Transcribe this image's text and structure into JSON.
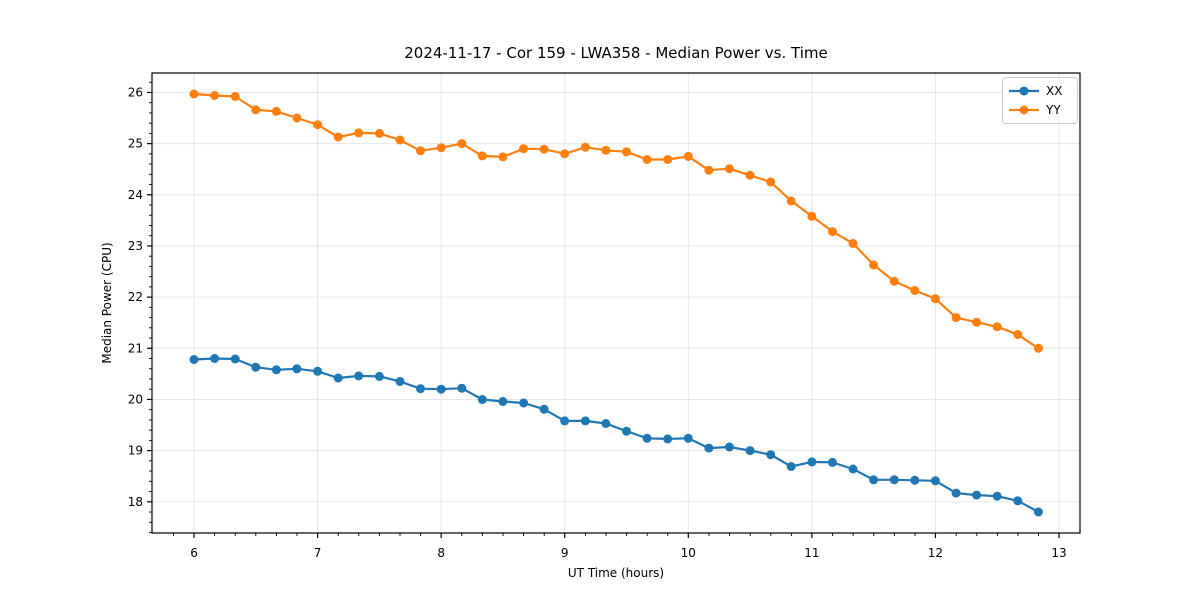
{
  "chart_data": {
    "type": "line",
    "title": "2024-11-17 - Cor 159 - LWA358 - Median Power vs. Time",
    "xlabel": "UT Time (hours)",
    "ylabel": "Median Power (CPU)",
    "xlim": [
      5.66,
      13.17
    ],
    "ylim": [
      17.39,
      26.38
    ],
    "x_ticks": [
      6,
      7,
      8,
      9,
      10,
      11,
      12,
      13
    ],
    "y_ticks": [
      18,
      19,
      20,
      21,
      22,
      23,
      24,
      25,
      26
    ],
    "x_minor_step": 0.1667,
    "y_minor_step": 0.2,
    "grid": true,
    "grid_color": "#e6e6e6",
    "spine_color": "#000000",
    "tick_label_size": 12,
    "legend_position": "upper right",
    "x": [
      6.0,
      6.167,
      6.333,
      6.5,
      6.667,
      6.833,
      7.0,
      7.167,
      7.333,
      7.5,
      7.667,
      7.833,
      8.0,
      8.167,
      8.333,
      8.5,
      8.667,
      8.833,
      9.0,
      9.167,
      9.333,
      9.5,
      9.667,
      9.833,
      10.0,
      10.167,
      10.333,
      10.5,
      10.667,
      10.833,
      11.0,
      11.167,
      11.333,
      11.5,
      11.667,
      11.833,
      12.0,
      12.167,
      12.333,
      12.5,
      12.667,
      12.833
    ],
    "series": [
      {
        "name": "XX",
        "color": "#1f77b4",
        "marker": "circle",
        "values": [
          20.78,
          20.8,
          20.79,
          20.63,
          20.58,
          20.6,
          20.55,
          20.42,
          20.46,
          20.45,
          20.35,
          20.21,
          20.2,
          20.22,
          20.0,
          19.96,
          19.93,
          19.81,
          19.58,
          19.58,
          19.53,
          19.38,
          19.24,
          19.23,
          19.24,
          19.05,
          19.07,
          19.0,
          18.92,
          18.69,
          18.78,
          18.77,
          18.64,
          18.43,
          18.43,
          18.42,
          18.41,
          18.17,
          18.13,
          18.11,
          18.02,
          17.8
        ]
      },
      {
        "name": "YY",
        "color": "#ff7f0e",
        "marker": "circle",
        "values": [
          25.97,
          25.94,
          25.92,
          25.66,
          25.63,
          25.5,
          25.37,
          25.13,
          25.21,
          25.2,
          25.07,
          24.86,
          24.92,
          25.0,
          24.76,
          24.74,
          24.9,
          24.89,
          24.8,
          24.93,
          24.87,
          24.84,
          24.69,
          24.69,
          24.75,
          24.48,
          24.51,
          24.38,
          24.25,
          23.88,
          23.58,
          23.28,
          23.05,
          22.63,
          22.31,
          22.13,
          21.97,
          21.6,
          21.51,
          21.42,
          21.27,
          21.0
        ]
      }
    ]
  }
}
